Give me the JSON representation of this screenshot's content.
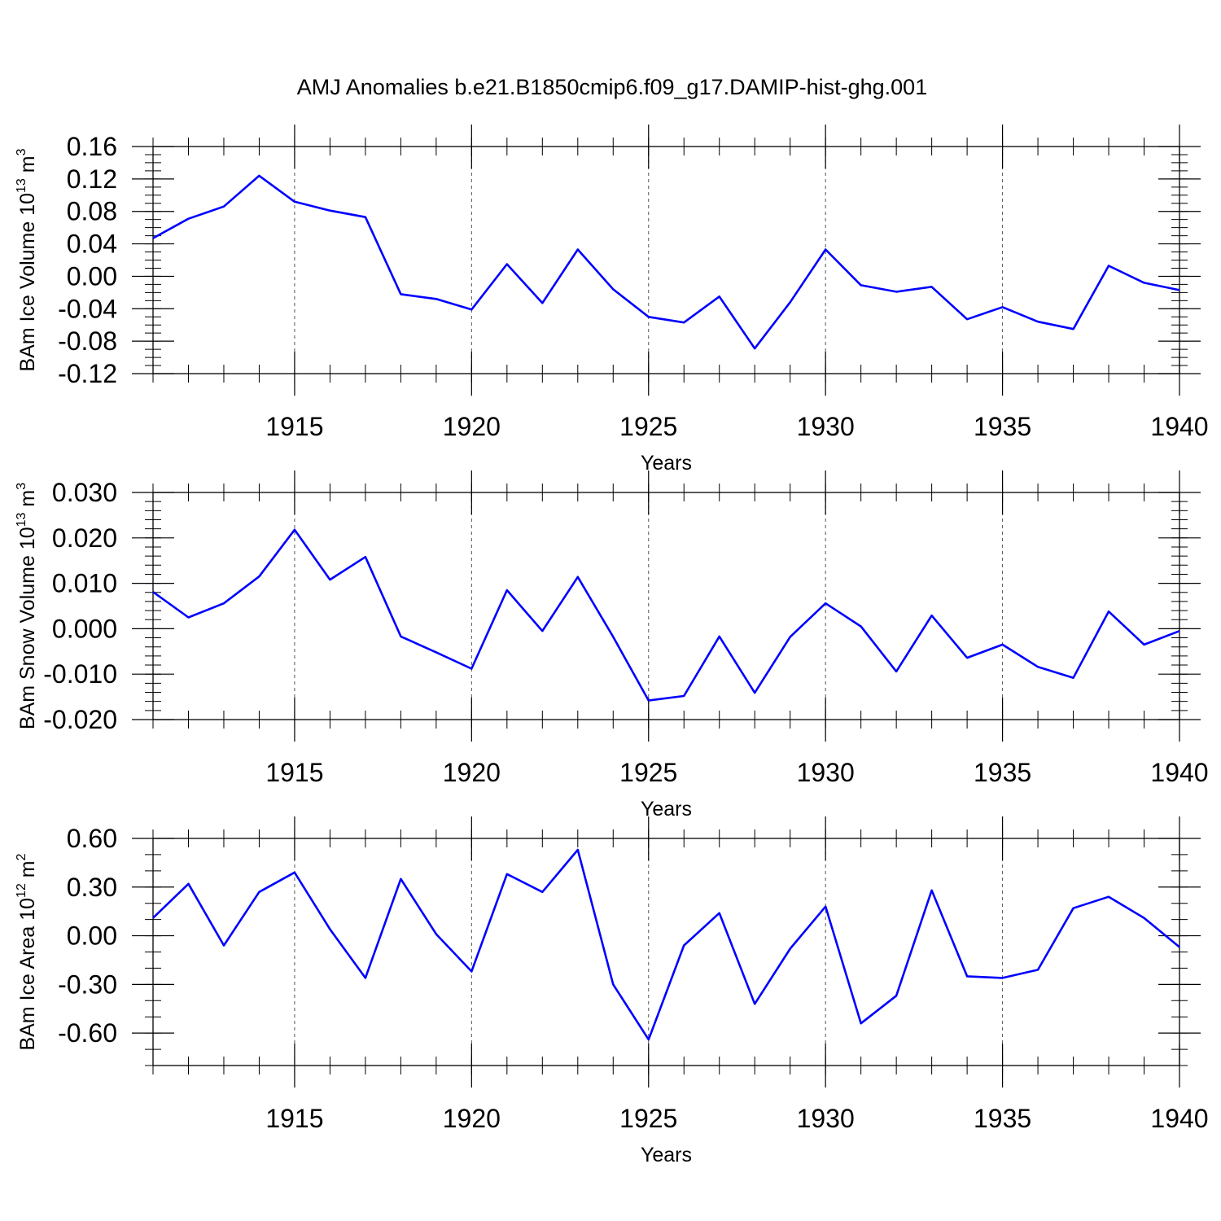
{
  "title": "AMJ Anomalies b.e21.B1850cmip6.f09_g17.DAMIP-hist-ghg.001",
  "chart_data": [
    {
      "type": "line",
      "ylabel": {
        "text": "BAm Ice Volume 10",
        "sup": "13",
        "unit": " m",
        "unit_sup": "3"
      },
      "xlabel": "Years",
      "xlim": [
        1911,
        1940
      ],
      "ylim": [
        -0.12,
        0.16
      ],
      "yticks": [
        -0.12,
        -0.08,
        -0.04,
        0.0,
        0.04,
        0.08,
        0.12,
        0.16
      ],
      "yticklabels": [
        "-0.12",
        "-0.08",
        "-0.04",
        "0.00",
        "0.04",
        "0.08",
        "0.12",
        "0.16"
      ],
      "ymajor_step": 0.04,
      "yminor_step": 0.01,
      "xticks": [
        1915,
        1920,
        1925,
        1930,
        1935,
        1940
      ],
      "xticklabels": [
        "1915",
        "1920",
        "1925",
        "1930",
        "1935",
        "1940"
      ],
      "x_minor_step": 1,
      "grid": "vertical dashed at x major ticks",
      "line_color": "#0000ff",
      "x": [
        1911,
        1912,
        1913,
        1914,
        1915,
        1916,
        1917,
        1918,
        1919,
        1920,
        1921,
        1922,
        1923,
        1924,
        1925,
        1926,
        1927,
        1928,
        1929,
        1930,
        1931,
        1932,
        1933,
        1934,
        1935,
        1936,
        1937,
        1938,
        1939,
        1940
      ],
      "y": [
        0.047,
        0.071,
        0.086,
        0.124,
        0.092,
        0.081,
        0.073,
        -0.022,
        -0.028,
        -0.041,
        0.015,
        -0.033,
        0.033,
        -0.016,
        -0.05,
        -0.057,
        -0.025,
        -0.089,
        -0.032,
        0.033,
        -0.011,
        -0.019,
        -0.013,
        -0.053,
        -0.038,
        -0.056,
        -0.065,
        0.013,
        -0.008,
        -0.017
      ]
    },
    {
      "type": "line",
      "ylabel": {
        "text": "BAm Snow Volume 10",
        "sup": "13",
        "unit": " m",
        "unit_sup": "3"
      },
      "xlabel": "Years",
      "xlim": [
        1911,
        1940
      ],
      "ylim": [
        -0.02,
        0.03
      ],
      "yticks": [
        -0.02,
        -0.01,
        0.0,
        0.01,
        0.02,
        0.03
      ],
      "yticklabels": [
        "-0.020",
        "-0.010",
        "0.000",
        "0.010",
        "0.020",
        "0.030"
      ],
      "ymajor_step": 0.01,
      "yminor_step": 0.002,
      "xticks": [
        1915,
        1920,
        1925,
        1930,
        1935,
        1940
      ],
      "xticklabels": [
        "1915",
        "1920",
        "1925",
        "1930",
        "1935",
        "1940"
      ],
      "x_minor_step": 1,
      "grid": "vertical dashed at x major ticks",
      "line_color": "#0000ff",
      "x": [
        1911,
        1912,
        1913,
        1914,
        1915,
        1916,
        1917,
        1918,
        1919,
        1920,
        1921,
        1922,
        1923,
        1924,
        1925,
        1926,
        1927,
        1928,
        1929,
        1930,
        1931,
        1932,
        1933,
        1934,
        1935,
        1936,
        1937,
        1938,
        1939,
        1940
      ],
      "y": [
        0.0081,
        0.0025,
        0.0056,
        0.0115,
        0.0218,
        0.0108,
        0.0158,
        -0.0017,
        -0.0052,
        -0.0088,
        0.0085,
        -0.0005,
        0.0114,
        -0.0018,
        -0.0158,
        -0.0148,
        -0.0017,
        -0.0141,
        -0.0018,
        0.0056,
        0.0005,
        -0.0094,
        0.0029,
        -0.0064,
        -0.0035,
        -0.0084,
        -0.0108,
        0.0038,
        -0.0035,
        -0.0005
      ]
    },
    {
      "type": "line",
      "ylabel": {
        "text": "BAm Ice Area 10",
        "sup": "12",
        "unit": " m",
        "unit_sup": "2"
      },
      "xlabel": "Years",
      "xlim": [
        1911,
        1940
      ],
      "ylim": [
        -0.8,
        0.6
      ],
      "yticks": [
        -0.6,
        -0.3,
        0.0,
        0.3,
        0.6
      ],
      "yticklabels": [
        "-0.60",
        "-0.30",
        "0.00",
        "0.30",
        "0.60"
      ],
      "ymajor_step": 0.3,
      "yminor_step": 0.1,
      "xticks": [
        1915,
        1920,
        1925,
        1930,
        1935,
        1940
      ],
      "xticklabels": [
        "1915",
        "1920",
        "1925",
        "1930",
        "1935",
        "1940"
      ],
      "x_minor_step": 1,
      "grid": "vertical dashed at x major ticks",
      "line_color": "#0000ff",
      "x": [
        1911,
        1912,
        1913,
        1914,
        1915,
        1916,
        1917,
        1918,
        1919,
        1920,
        1921,
        1922,
        1923,
        1924,
        1925,
        1926,
        1927,
        1928,
        1929,
        1930,
        1931,
        1932,
        1933,
        1934,
        1935,
        1936,
        1937,
        1938,
        1939,
        1940
      ],
      "y": [
        0.11,
        0.32,
        -0.06,
        0.27,
        0.39,
        0.04,
        -0.26,
        0.35,
        0.01,
        -0.22,
        0.38,
        0.27,
        0.53,
        -0.3,
        -0.64,
        -0.06,
        0.14,
        -0.42,
        -0.08,
        0.18,
        -0.54,
        -0.37,
        0.28,
        -0.25,
        -0.26,
        -0.21,
        0.17,
        0.24,
        0.11,
        -0.07
      ]
    }
  ]
}
